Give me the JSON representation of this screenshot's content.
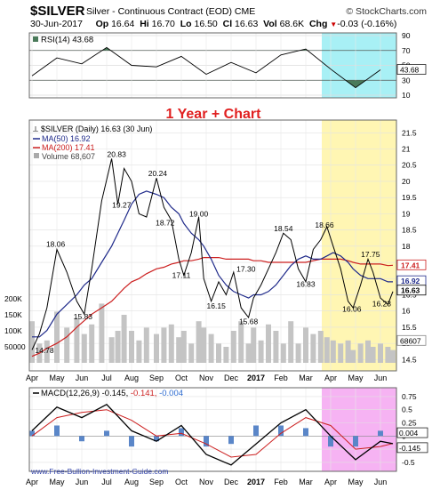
{
  "header": {
    "symbol": "$SILVER",
    "description": "Silver - Continuous Contract (EOD)",
    "exchange": "CME",
    "brand": "© StockCharts.com",
    "date": "30-Jun-2017",
    "op_label": "Op",
    "op": "16.64",
    "hi_label": "Hi",
    "hi": "16.70",
    "lo_label": "Lo",
    "lo": "16.50",
    "cl_label": "Cl",
    "cl": "16.63",
    "vol_label": "Vol",
    "vol": "68.6K",
    "chg_label": "Chg",
    "chg": "-0.03 (-0.16%)",
    "chg_arrow": "▼"
  },
  "overlay_title": "1 Year + Chart",
  "watermark": "www.Free-Bullion-Investment-Guide.com",
  "colors": {
    "price": "#000000",
    "ma50": "#1f2a8a",
    "ma200": "#cc1f1f",
    "volume": "#c4c4c4",
    "rsi_fill": "#4a7a5a",
    "yellow_band": "#fff6b3",
    "cyan_band": "#a8f0f5",
    "magenta_band": "#f6b3f3",
    "title_red": "#e02020"
  },
  "chart_data": [
    {
      "type": "line",
      "title": "RSI(14) 43.68",
      "legend": "RSI(14) 43.68",
      "yticks": [
        10,
        30,
        50,
        70,
        90
      ],
      "ylim": [
        10,
        90
      ],
      "current_label": "43.68",
      "x": [
        "Apr",
        "May",
        "Jun",
        "Jul",
        "Aug",
        "Sep",
        "Oct",
        "Nov",
        "Dec",
        "2017",
        "Feb",
        "Mar",
        "Apr",
        "May",
        "Jun"
      ],
      "series": [
        {
          "name": "RSI(14)",
          "values": [
            36,
            60,
            52,
            74,
            50,
            48,
            62,
            38,
            54,
            40,
            64,
            72,
            45,
            20,
            44
          ]
        }
      ]
    },
    {
      "type": "line",
      "legend": [
        {
          "label": "$SILVER (Daily) 16.63 (30 Jun)"
        },
        {
          "label": "MA(50) 16.92"
        },
        {
          "label": "MA(200) 17.41"
        },
        {
          "label": "Volume 68,607"
        }
      ],
      "yticks": [
        14.5,
        15.0,
        15.5,
        16.0,
        16.5,
        17.0,
        17.5,
        18.0,
        18.5,
        19.0,
        19.5,
        20.0,
        20.5,
        21.0,
        21.5
      ],
      "ylim": [
        14.4,
        21.7
      ],
      "volume_ticks": [
        "200K",
        "150K",
        "100K",
        "50000"
      ],
      "right_tags": [
        "17.41",
        "16.92",
        "16.63",
        "68607"
      ],
      "x_ticks": [
        "Apr",
        "May",
        "Jun",
        "Jul",
        "Aug",
        "Sep",
        "Oct",
        "Nov",
        "Dec",
        "2017",
        "Feb",
        "Mar",
        "Apr",
        "May",
        "Jun"
      ],
      "annotations": [
        {
          "text": "14.78",
          "t": 0.5,
          "v": 14.78
        },
        {
          "text": "18.06",
          "t": 0.95,
          "v": 18.06
        },
        {
          "text": "15.83",
          "t": 2.05,
          "v": 15.83
        },
        {
          "text": "20.83",
          "t": 3.4,
          "v": 20.83
        },
        {
          "text": "19.27",
          "t": 3.6,
          "v": 19.27
        },
        {
          "text": "20.24",
          "t": 5.05,
          "v": 20.24
        },
        {
          "text": "18.72",
          "t": 5.35,
          "v": 18.72
        },
        {
          "text": "19.00",
          "t": 6.7,
          "v": 19.0
        },
        {
          "text": "17.11",
          "t": 6.0,
          "v": 17.11
        },
        {
          "text": "16.15",
          "t": 7.4,
          "v": 16.15
        },
        {
          "text": "17.30",
          "t": 8.6,
          "v": 17.3
        },
        {
          "text": "15.68",
          "t": 8.7,
          "v": 15.68
        },
        {
          "text": "18.54",
          "t": 10.1,
          "v": 18.54
        },
        {
          "text": "16.83",
          "t": 11.0,
          "v": 16.83
        },
        {
          "text": "18.66",
          "t": 11.75,
          "v": 18.66
        },
        {
          "text": "17.75",
          "t": 13.6,
          "v": 17.75
        },
        {
          "text": "16.06",
          "t": 12.85,
          "v": 16.06
        },
        {
          "text": "16.23",
          "t": 14.05,
          "v": 16.23
        }
      ],
      "x": [
        0.0,
        0.3,
        0.6,
        1.0,
        1.4,
        1.8,
        2.1,
        2.4,
        2.8,
        3.2,
        3.45,
        3.7,
        4.0,
        4.3,
        4.6,
        5.0,
        5.3,
        5.6,
        5.9,
        6.1,
        6.4,
        6.7,
        6.9,
        7.2,
        7.5,
        7.8,
        8.1,
        8.4,
        8.7,
        8.9,
        9.2,
        9.5,
        9.8,
        10.1,
        10.4,
        10.7,
        11.0,
        11.3,
        11.6,
        11.85,
        12.1,
        12.4,
        12.7,
        12.9,
        13.2,
        13.5,
        13.7,
        14.0,
        14.3,
        14.5
      ],
      "series": [
        {
          "name": "$SILVER",
          "values": [
            14.8,
            15.3,
            16.1,
            17.9,
            17.2,
            16.3,
            15.9,
            17.3,
            19.4,
            20.7,
            19.3,
            20.4,
            20.0,
            19.0,
            18.9,
            20.1,
            19.2,
            18.8,
            17.6,
            17.1,
            17.8,
            18.9,
            17.0,
            16.3,
            16.9,
            16.5,
            17.2,
            16.1,
            15.8,
            16.4,
            16.8,
            17.3,
            17.8,
            18.4,
            18.2,
            17.3,
            16.9,
            17.9,
            18.2,
            18.6,
            18.0,
            17.3,
            16.3,
            16.1,
            16.8,
            17.6,
            17.2,
            16.4,
            16.2,
            16.6
          ]
        },
        {
          "name": "MA(50)",
          "values": [
            15.2,
            15.2,
            15.4,
            15.9,
            16.2,
            16.5,
            16.8,
            17.0,
            17.5,
            18.0,
            18.4,
            18.8,
            19.3,
            19.6,
            19.7,
            19.6,
            19.5,
            19.2,
            19.0,
            18.7,
            18.4,
            18.2,
            18.0,
            17.6,
            17.1,
            16.8,
            16.6,
            16.5,
            16.4,
            16.5,
            16.5,
            16.6,
            16.8,
            17.1,
            17.4,
            17.6,
            17.7,
            17.6,
            17.6,
            17.7,
            17.8,
            17.7,
            17.5,
            17.3,
            17.1,
            17.0,
            17.0,
            17.0,
            16.9,
            16.9
          ]
        },
        {
          "name": "MA(200)",
          "values": [
            14.6,
            14.7,
            14.85,
            15.0,
            15.2,
            15.5,
            15.7,
            15.9,
            16.1,
            16.3,
            16.5,
            16.7,
            16.9,
            17.0,
            17.15,
            17.3,
            17.35,
            17.45,
            17.5,
            17.55,
            17.55,
            17.6,
            17.65,
            17.65,
            17.65,
            17.6,
            17.6,
            17.6,
            17.6,
            17.55,
            17.55,
            17.5,
            17.5,
            17.5,
            17.5,
            17.5,
            17.5,
            17.55,
            17.6,
            17.6,
            17.6,
            17.6,
            17.55,
            17.5,
            17.45,
            17.45,
            17.45,
            17.45,
            17.4,
            17.41
          ]
        },
        {
          "name": "Volume",
          "values": [
            130,
            60,
            70,
            160,
            110,
            140,
            90,
            120,
            185,
            80,
            100,
            150,
            100,
            70,
            110,
            90,
            110,
            120,
            80,
            100,
            60,
            130,
            110,
            90,
            60,
            50,
            100,
            130,
            60,
            110,
            70,
            120,
            100,
            60,
            130,
            60,
            110,
            90,
            100,
            80,
            70,
            60,
            70,
            40,
            60,
            70,
            50,
            60,
            50,
            40
          ]
        }
      ]
    },
    {
      "type": "line",
      "title": "MACD(12,26,9) -0.145, -0.141, -0.004",
      "legend": "MACD(12,26,9) -0.145, -0.141, -0.004",
      "legend_parts": [
        "MACD(12,26,9)",
        "-0.145,",
        "-0.141,",
        "-0.004"
      ],
      "yticks": [
        -0.5,
        -0.25,
        0.0,
        0.25,
        0.5,
        0.75
      ],
      "ylim": [
        -0.62,
        0.85
      ],
      "right_tags": [
        "0.004",
        "-0.145"
      ],
      "x_ticks": [
        "Apr",
        "May",
        "Jun",
        "Jul",
        "Aug",
        "Sep",
        "Oct",
        "Nov",
        "Dec",
        "2017",
        "Feb",
        "Mar",
        "Apr",
        "May",
        "Jun"
      ],
      "x": [
        0,
        1,
        2,
        3,
        4,
        5,
        6,
        7,
        8,
        9,
        10,
        11,
        12,
        13,
        14,
        14.5
      ],
      "series": [
        {
          "name": "MACD",
          "values": [
            0.1,
            0.55,
            0.35,
            0.6,
            0.1,
            -0.1,
            0.2,
            -0.35,
            -0.55,
            -0.15,
            0.25,
            0.5,
            0.0,
            -0.45,
            -0.1,
            -0.145
          ]
        },
        {
          "name": "Signal",
          "values": [
            0.0,
            0.35,
            0.45,
            0.5,
            0.3,
            0.0,
            0.05,
            -0.15,
            -0.4,
            -0.35,
            0.05,
            0.35,
            0.2,
            -0.25,
            -0.2,
            -0.141
          ]
        },
        {
          "name": "Histogram",
          "values": [
            0.1,
            0.2,
            -0.1,
            0.1,
            -0.2,
            -0.1,
            0.15,
            -0.2,
            -0.15,
            0.2,
            0.2,
            0.15,
            -0.2,
            -0.2,
            0.1,
            -0.004
          ]
        }
      ]
    }
  ]
}
